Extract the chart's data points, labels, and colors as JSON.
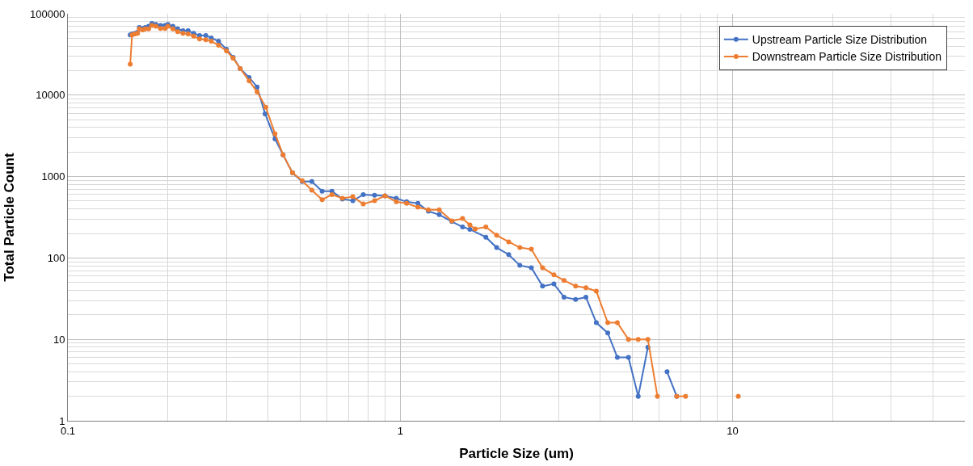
{
  "chart_data": {
    "type": "line",
    "xlabel": "Particle Size (um)",
    "ylabel": "Total Particle Count",
    "log": "xy",
    "xlim": [
      0.1,
      50
    ],
    "xticks": [
      0.1,
      1,
      10
    ],
    "ylim": [
      1,
      100000
    ],
    "yticks": [
      1,
      10,
      100,
      1000,
      10000,
      100000
    ],
    "grid": true,
    "legend": "top right",
    "marker": "circle",
    "line_style": "solid",
    "series": [
      {
        "name": "Upstream Particle Size Distribution",
        "color": "#4472c4",
        "x": [
          0.154,
          0.156,
          0.159,
          0.162,
          0.164,
          0.168,
          0.171,
          0.175,
          0.179,
          0.184,
          0.19,
          0.196,
          0.2,
          0.207,
          0.214,
          0.222,
          0.23,
          0.239,
          0.249,
          0.26,
          0.27,
          0.284,
          0.3,
          0.314,
          0.33,
          0.351,
          0.371,
          0.392,
          0.42,
          0.444,
          0.474,
          0.507,
          0.542,
          0.582,
          0.623,
          0.67,
          0.72,
          0.774,
          0.837,
          0.9,
          0.973,
          1.045,
          1.13,
          1.215,
          1.31,
          1.43,
          1.54,
          1.62,
          1.81,
          1.95,
          2.12,
          2.29,
          2.48,
          2.68,
          2.9,
          3.11,
          3.37,
          3.62,
          3.89,
          4.21,
          4.5,
          4.86,
          5.2,
          5.56,
          null,
          6.35,
          6.79
        ],
        "values": [
          55000,
          56500,
          57500,
          59000,
          68000,
          66000,
          68000,
          70000,
          76000,
          74000,
          72000,
          72000,
          74000,
          70000,
          65000,
          62000,
          62000,
          57500,
          54000,
          54000,
          50500,
          46000,
          36700,
          29200,
          21200,
          16500,
          12600,
          5900,
          2900,
          1850,
          1110,
          870,
          870,
          660,
          660,
          530,
          505,
          600,
          590,
          580,
          540,
          490,
          470,
          375,
          340,
          280,
          240,
          225,
          180,
          134,
          110,
          81,
          76,
          45,
          48,
          33,
          31,
          33,
          16,
          12,
          6,
          6,
          2,
          8,
          null,
          4,
          2
        ]
      },
      {
        "name": "Downstream Particle Size Distribution",
        "color": "#ed7d31",
        "x": [
          0.154,
          0.156,
          0.159,
          0.162,
          0.164,
          0.168,
          0.171,
          0.175,
          0.179,
          0.184,
          0.19,
          0.196,
          0.2,
          0.207,
          0.214,
          0.222,
          0.23,
          0.239,
          0.249,
          0.26,
          0.27,
          0.284,
          0.3,
          0.314,
          0.33,
          0.351,
          0.371,
          0.394,
          0.42,
          0.444,
          0.474,
          0.507,
          0.542,
          0.582,
          0.623,
          0.67,
          0.72,
          0.774,
          0.837,
          0.9,
          0.973,
          1.045,
          1.13,
          1.215,
          1.31,
          1.43,
          1.54,
          1.62,
          1.68,
          1.81,
          1.95,
          2.12,
          2.29,
          2.48,
          2.68,
          2.9,
          3.11,
          3.37,
          3.62,
          3.89,
          4.21,
          4.5,
          4.86,
          5.2,
          5.56,
          5.94,
          null,
          6.79,
          7.22,
          null,
          10.4
        ],
        "values": [
          24000,
          55000,
          56500,
          57500,
          65000,
          63500,
          65000,
          65000,
          72000,
          70000,
          66000,
          66000,
          70000,
          65000,
          60000,
          57500,
          56500,
          53000,
          49000,
          48000,
          46000,
          41000,
          35000,
          28500,
          21200,
          15000,
          11000,
          7100,
          3350,
          1850,
          1110,
          890,
          680,
          520,
          600,
          540,
          565,
          460,
          505,
          580,
          490,
          470,
          420,
          390,
          390,
          285,
          305,
          255,
          227,
          240,
          190,
          158,
          134,
          128,
          76,
          62,
          53,
          45,
          43,
          39,
          16,
          16,
          10,
          10,
          10,
          2,
          null,
          2,
          2,
          null,
          2
        ]
      }
    ]
  }
}
